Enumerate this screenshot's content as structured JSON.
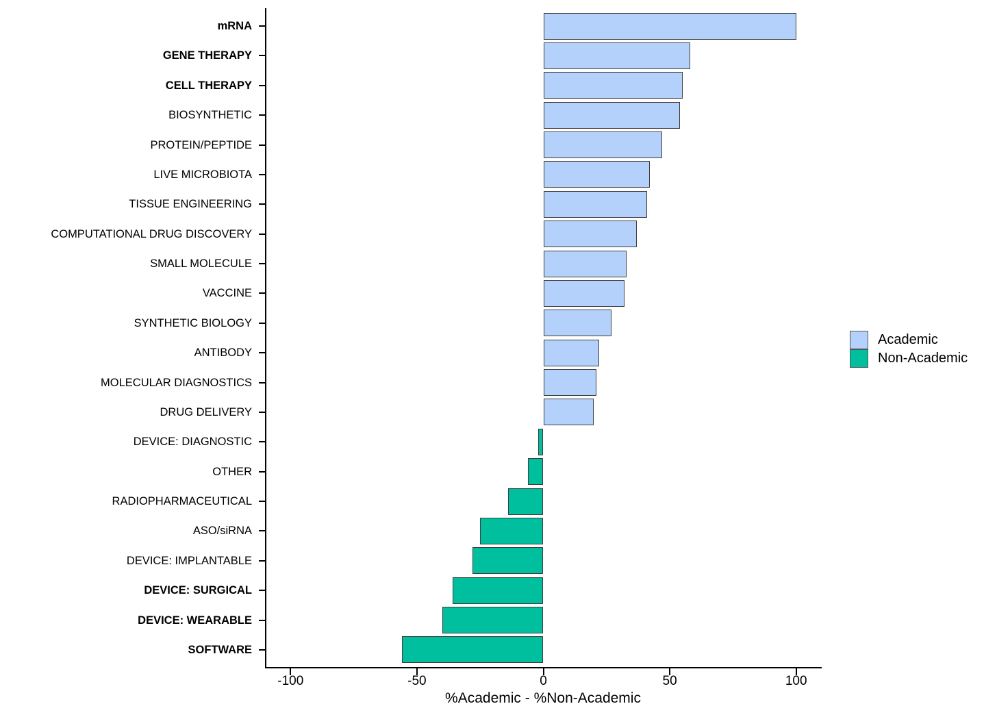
{
  "chart_data": {
    "type": "bar",
    "orientation": "horizontal",
    "title": "",
    "xlabel": "%Academic - %Non-Academic",
    "ylabel": "",
    "xlim": [
      -115,
      110
    ],
    "x_ticks": [
      -100,
      -50,
      0,
      50,
      100
    ],
    "grid": false,
    "colors": {
      "academic": "#b3d1fa",
      "non_academic": "#00bf9e"
    },
    "legend": {
      "position": "right",
      "entries": [
        {
          "label": "Academic",
          "color_key": "academic"
        },
        {
          "label": "Non-Academic",
          "color_key": "non_academic"
        }
      ]
    },
    "bars": [
      {
        "label": "mRNA",
        "value": 100,
        "bold": true,
        "group": "Academic"
      },
      {
        "label": "GENE THERAPY",
        "value": 58,
        "bold": true,
        "group": "Academic"
      },
      {
        "label": "CELL THERAPY",
        "value": 55,
        "bold": true,
        "group": "Academic"
      },
      {
        "label": "BIOSYNTHETIC",
        "value": 54,
        "bold": false,
        "group": "Academic"
      },
      {
        "label": "PROTEIN/PEPTIDE",
        "value": 47,
        "bold": false,
        "group": "Academic"
      },
      {
        "label": "LIVE MICROBIOTA",
        "value": 42,
        "bold": false,
        "group": "Academic"
      },
      {
        "label": "TISSUE ENGINEERING",
        "value": 41,
        "bold": false,
        "group": "Academic"
      },
      {
        "label": "COMPUTATIONAL DRUG DISCOVERY",
        "value": 37,
        "bold": false,
        "group": "Academic"
      },
      {
        "label": "SMALL MOLECULE",
        "value": 33,
        "bold": false,
        "group": "Academic"
      },
      {
        "label": "VACCINE",
        "value": 32,
        "bold": false,
        "group": "Academic"
      },
      {
        "label": "SYNTHETIC BIOLOGY",
        "value": 27,
        "bold": false,
        "group": "Academic"
      },
      {
        "label": "ANTIBODY",
        "value": 22,
        "bold": false,
        "group": "Academic"
      },
      {
        "label": "MOLECULAR DIAGNOSTICS",
        "value": 21,
        "bold": false,
        "group": "Academic"
      },
      {
        "label": "DRUG DELIVERY",
        "value": 20,
        "bold": false,
        "group": "Academic"
      },
      {
        "label": "DEVICE: DIAGNOSTIC",
        "value": -2,
        "bold": false,
        "group": "Non-Academic"
      },
      {
        "label": "OTHER",
        "value": -6,
        "bold": false,
        "group": "Non-Academic"
      },
      {
        "label": "RADIOPHARMACEUTICAL",
        "value": -14,
        "bold": false,
        "group": "Non-Academic"
      },
      {
        "label": "ASO/siRNA",
        "value": -25,
        "bold": false,
        "group": "Non-Academic"
      },
      {
        "label": "DEVICE: IMPLANTABLE",
        "value": -28,
        "bold": false,
        "group": "Non-Academic"
      },
      {
        "label": "DEVICE: SURGICAL",
        "value": -36,
        "bold": true,
        "group": "Non-Academic"
      },
      {
        "label": "DEVICE: WEARABLE",
        "value": -40,
        "bold": true,
        "group": "Non-Academic"
      },
      {
        "label": "SOFTWARE",
        "value": -56,
        "bold": true,
        "group": "Non-Academic"
      }
    ]
  }
}
